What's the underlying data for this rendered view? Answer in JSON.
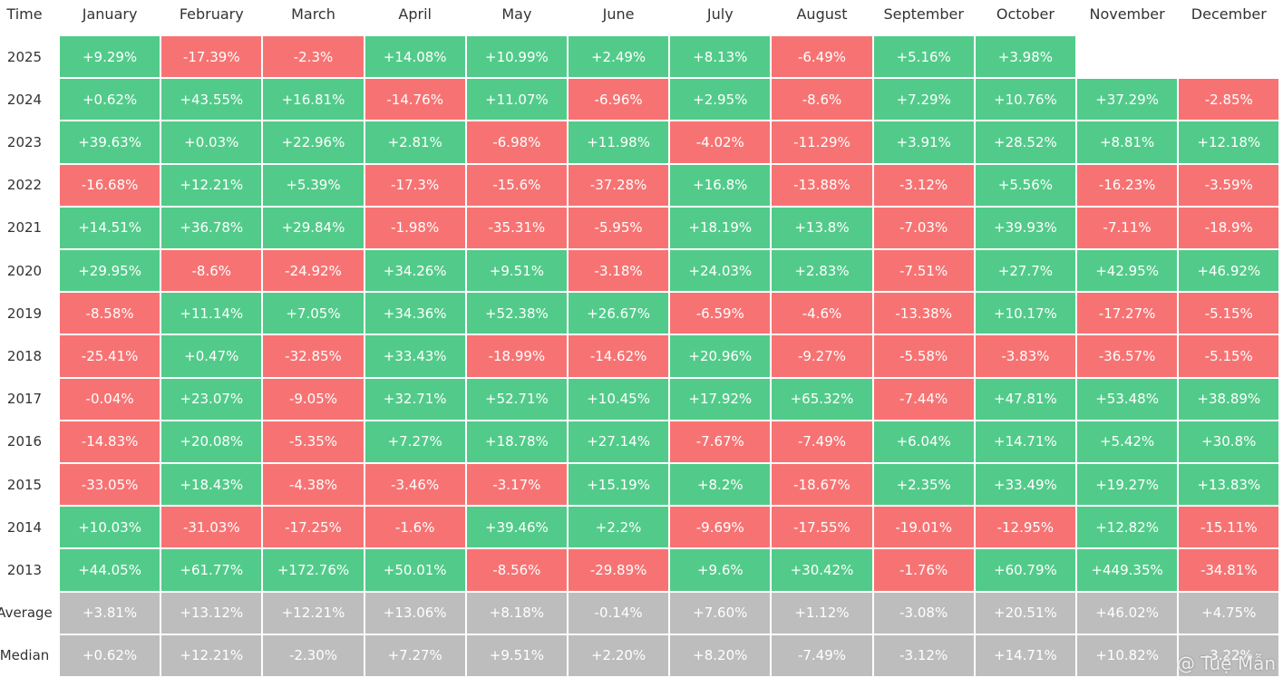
{
  "table": {
    "corner": "Time",
    "columns": [
      "January",
      "February",
      "March",
      "April",
      "May",
      "June",
      "July",
      "August",
      "September",
      "October",
      "November",
      "December"
    ],
    "rows": [
      [
        "2025",
        "+9.29%",
        "-17.39%",
        "-2.3%",
        "+14.08%",
        "+10.99%",
        "+2.49%",
        "+8.13%",
        "-6.49%",
        "+5.16%",
        "+3.98%"
      ],
      [
        "2024",
        "+0.62%",
        "+43.55%",
        "+16.81%",
        "-14.76%",
        "+11.07%",
        "-6.96%",
        "+2.95%",
        "-8.6%",
        "+7.29%",
        "+10.76%",
        "+37.29%",
        "-2.85%"
      ],
      [
        "2023",
        "+39.63%",
        "+0.03%",
        "+22.96%",
        "+2.81%",
        "-6.98%",
        "+11.98%",
        "-4.02%",
        "-11.29%",
        "+3.91%",
        "+28.52%",
        "+8.81%",
        "+12.18%"
      ],
      [
        "2022",
        "-16.68%",
        "+12.21%",
        "+5.39%",
        "-17.3%",
        "-15.6%",
        "-37.28%",
        "+16.8%",
        "-13.88%",
        "-3.12%",
        "+5.56%",
        "-16.23%",
        "-3.59%"
      ],
      [
        "2021",
        "+14.51%",
        "+36.78%",
        "+29.84%",
        "-1.98%",
        "-35.31%",
        "-5.95%",
        "+18.19%",
        "+13.8%",
        "-7.03%",
        "+39.93%",
        "-7.11%",
        "-18.9%"
      ],
      [
        "2020",
        "+29.95%",
        "-8.6%",
        "-24.92%",
        "+34.26%",
        "+9.51%",
        "-3.18%",
        "+24.03%",
        "+2.83%",
        "-7.51%",
        "+27.7%",
        "+42.95%",
        "+46.92%"
      ],
      [
        "2019",
        "-8.58%",
        "+11.14%",
        "+7.05%",
        "+34.36%",
        "+52.38%",
        "+26.67%",
        "-6.59%",
        "-4.6%",
        "-13.38%",
        "+10.17%",
        "-17.27%",
        "-5.15%"
      ],
      [
        "2018",
        "-25.41%",
        "+0.47%",
        "-32.85%",
        "+33.43%",
        "-18.99%",
        "-14.62%",
        "+20.96%",
        "-9.27%",
        "-5.58%",
        "-3.83%",
        "-36.57%",
        "-5.15%"
      ],
      [
        "2017",
        "-0.04%",
        "+23.07%",
        "-9.05%",
        "+32.71%",
        "+52.71%",
        "+10.45%",
        "+17.92%",
        "+65.32%",
        "-7.44%",
        "+47.81%",
        "+53.48%",
        "+38.89%"
      ],
      [
        "2016",
        "-14.83%",
        "+20.08%",
        "-5.35%",
        "+7.27%",
        "+18.78%",
        "+27.14%",
        "-7.67%",
        "-7.49%",
        "+6.04%",
        "+14.71%",
        "+5.42%",
        "+30.8%"
      ],
      [
        "2015",
        "-33.05%",
        "+18.43%",
        "-4.38%",
        "-3.46%",
        "-3.17%",
        "+15.19%",
        "+8.2%",
        "-18.67%",
        "+2.35%",
        "+33.49%",
        "+19.27%",
        "+13.83%"
      ],
      [
        "2014",
        "+10.03%",
        "-31.03%",
        "-17.25%",
        "-1.6%",
        "+39.46%",
        "+2.2%",
        "-9.69%",
        "-17.55%",
        "-19.01%",
        "-12.95%",
        "+12.82%",
        "-15.11%"
      ],
      [
        "2013",
        "+44.05%",
        "+61.77%",
        "+172.76%",
        "+50.01%",
        "-8.56%",
        "-29.89%",
        "+9.6%",
        "+30.42%",
        "-1.76%",
        "+60.79%",
        "+449.35%",
        "-34.81%"
      ]
    ],
    "summary": [
      [
        "Average",
        "+3.81%",
        "+13.12%",
        "+12.21%",
        "+13.06%",
        "+8.18%",
        "-0.14%",
        "+7.60%",
        "+1.12%",
        "-3.08%",
        "+20.51%",
        "+46.02%",
        "+4.75%"
      ],
      [
        "Median",
        "+0.62%",
        "+12.21%",
        "-2.30%",
        "+7.27%",
        "+9.51%",
        "+2.20%",
        "+8.20%",
        "-7.49%",
        "-3.12%",
        "+14.71%",
        "+10.82%",
        "-3.22%"
      ]
    ],
    "colors": {
      "positive": "#52cb8a",
      "negative": "#f77373",
      "summary": "#bdbdbd"
    }
  },
  "watermark": "@ Tuệ Mẫn"
}
